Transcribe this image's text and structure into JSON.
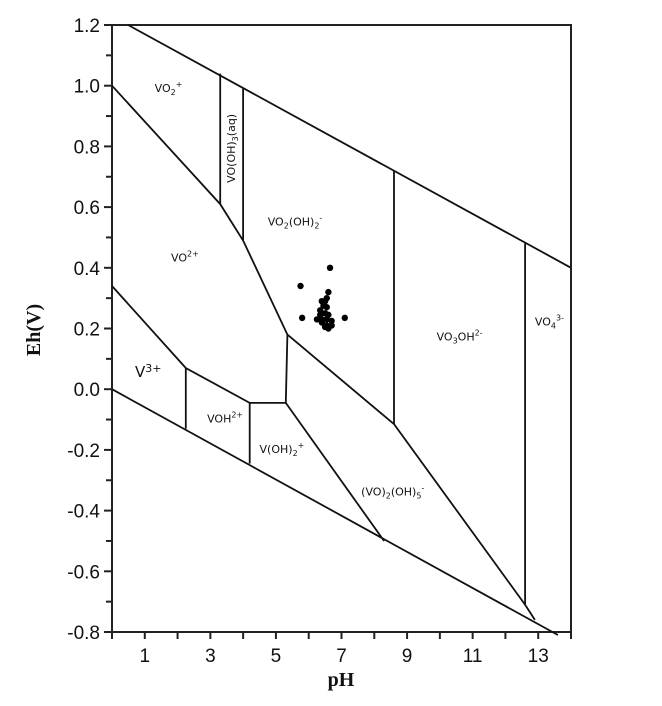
{
  "chart_data": {
    "type": "scatter",
    "title": "",
    "xlabel": "pH",
    "ylabel": "Eh(V)",
    "xlim": [
      0,
      14
    ],
    "ylim": [
      -0.8,
      1.2
    ],
    "grid": false,
    "legend": null,
    "x_ticks": [
      1,
      3,
      5,
      7,
      9,
      11,
      13
    ],
    "x_tick_labels": [
      "1",
      "3",
      "5",
      "7",
      "9",
      "11",
      "13"
    ],
    "x_minor_ticks": [
      0,
      2,
      4,
      6,
      8,
      10,
      12,
      14
    ],
    "y_ticks": [
      1.2,
      1.0,
      0.8,
      0.6,
      0.4,
      0.2,
      0.0,
      -0.2,
      -0.4,
      -0.6,
      -0.8
    ],
    "y_tick_labels": [
      "1.2",
      "1.0",
      "0.8",
      "0.6",
      "0.4",
      "0.2",
      "0.0",
      "-0.2",
      "-0.4",
      "-0.6",
      "-0.8"
    ],
    "y_minor_ticks": [
      1.1,
      0.9,
      0.7,
      0.5,
      0.3,
      0.1,
      -0.1,
      -0.3,
      -0.5,
      -0.7
    ],
    "boundaries": [
      {
        "name": "upper-water-stability",
        "points": [
          [
            0.49,
            1.2
          ],
          [
            14,
            0.4
          ]
        ]
      },
      {
        "name": "lower-water-stability",
        "points": [
          [
            0,
            0.0
          ],
          [
            13.6,
            -0.81
          ]
        ]
      },
      {
        "name": "vo2-plus-lower",
        "points": [
          [
            0,
            1.0
          ],
          [
            3.3,
            0.61
          ],
          [
            4.0,
            0.49
          ],
          [
            5.35,
            0.18
          ],
          [
            8.6,
            -0.115
          ],
          [
            12.6,
            -0.71
          ],
          [
            12.9,
            -0.76
          ]
        ]
      },
      {
        "name": "vooh3-left",
        "points": [
          [
            3.3,
            0.61
          ],
          [
            3.3,
            1.04
          ]
        ]
      },
      {
        "name": "vooh3-right",
        "points": [
          [
            4.0,
            0.49
          ],
          [
            4.0,
            0.99
          ]
        ]
      },
      {
        "name": "vo2oh2-vo3oh",
        "points": [
          [
            8.6,
            -0.115
          ],
          [
            8.6,
            0.72
          ]
        ]
      },
      {
        "name": "vo3oh-vo4",
        "points": [
          [
            12.6,
            -0.71
          ],
          [
            12.6,
            0.48
          ]
        ]
      },
      {
        "name": "v3-upper",
        "points": [
          [
            0,
            0.34
          ],
          [
            2.25,
            0.07
          ],
          [
            4.2,
            -0.045
          ],
          [
            5.3,
            -0.045
          ],
          [
            8.3,
            -0.5
          ]
        ]
      },
      {
        "name": "v3-voh",
        "points": [
          [
            2.25,
            0.07
          ],
          [
            2.25,
            -0.13
          ]
        ]
      },
      {
        "name": "voh-voh2",
        "points": [
          [
            4.2,
            -0.045
          ],
          [
            4.2,
            -0.245
          ]
        ]
      },
      {
        "name": "voh2-vo2oh2",
        "points": [
          [
            5.3,
            -0.045
          ],
          [
            5.35,
            0.18
          ]
        ]
      }
    ],
    "regions": [
      {
        "label": "VO",
        "sub": "2",
        "sup": "+",
        "x": 1.3,
        "y": 0.98,
        "rotate": 0,
        "size": "small"
      },
      {
        "label": "VO(OH)",
        "sub": "3",
        "sup": "",
        "tail": "(aq)",
        "x": 3.75,
        "y": 0.68,
        "rotate": -90,
        "size": "small"
      },
      {
        "label": "VO",
        "sub": "2",
        "sup": "-",
        "mid": "(OH)",
        "sub2": "2",
        "x": 4.75,
        "y": 0.54,
        "rotate": 0,
        "size": "small",
        "full": "VO2(OH)2-"
      },
      {
        "label": "VO",
        "sub": "",
        "sup": "2+",
        "x": 1.8,
        "y": 0.42,
        "rotate": 0,
        "size": "small"
      },
      {
        "label": "V",
        "sub": "",
        "sup": "3+",
        "x": 0.7,
        "y": 0.04,
        "rotate": 0,
        "size": "big"
      },
      {
        "label": "VOH",
        "sub": "",
        "sup": "2+",
        "x": 2.9,
        "y": -0.11,
        "rotate": 0,
        "size": "small"
      },
      {
        "label": "V(OH)",
        "sub": "2",
        "sup": "+",
        "x": 4.5,
        "y": -0.21,
        "rotate": 0,
        "size": "small"
      },
      {
        "label": "(VO)",
        "sub": "2",
        "mid": "(OH)",
        "sub2": "5",
        "sup": "-",
        "x": 7.6,
        "y": -0.35,
        "rotate": 0,
        "size": "small",
        "full": "(VO)2(OH)5-"
      },
      {
        "label": "VO",
        "sub": "3",
        "mid": "OH",
        "sup": "2-",
        "x": 9.9,
        "y": 0.16,
        "rotate": 0,
        "size": "small",
        "full": "VO3OH2-"
      },
      {
        "label": "VO",
        "sub": "4",
        "sup": "3-",
        "x": 12.9,
        "y": 0.21,
        "rotate": 0,
        "size": "small"
      }
    ],
    "series": [
      {
        "name": "samples",
        "x": [
          5.75,
          6.65,
          5.8,
          6.55,
          6.4,
          6.6,
          6.45,
          6.55,
          6.35,
          6.5,
          6.35,
          6.6,
          6.55,
          6.7,
          6.25,
          6.4,
          7.1,
          6.7,
          6.5,
          6.55,
          6.6,
          6.4,
          6.5
        ],
        "y": [
          0.34,
          0.4,
          0.235,
          0.3,
          0.29,
          0.32,
          0.275,
          0.27,
          0.26,
          0.25,
          0.245,
          0.245,
          0.23,
          0.225,
          0.23,
          0.22,
          0.235,
          0.21,
          0.205,
          0.21,
          0.2,
          0.23,
          0.29
        ]
      }
    ]
  }
}
